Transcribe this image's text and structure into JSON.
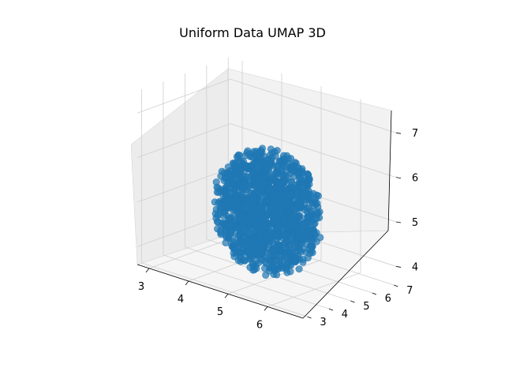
{
  "chart_data": {
    "type": "scatter",
    "projection": "3d",
    "title": "Uniform Data UMAP 3D",
    "xlabel": "",
    "ylabel": "",
    "zlabel": "",
    "x_ticks": [
      "3",
      "4",
      "5",
      "6"
    ],
    "y_ticks": [
      "3",
      "4",
      "5",
      "6",
      "7"
    ],
    "z_ticks": [
      "4",
      "5",
      "6",
      "7"
    ],
    "xlim": [
      2.7,
      6.9
    ],
    "ylim": [
      2.8,
      7.1
    ],
    "zlim": [
      3.6,
      7.5
    ],
    "grid": true,
    "point_color": "#1f77b4",
    "point_alpha": 0.7,
    "cluster": {
      "shape": "roughly spherical dense cloud of uniform points",
      "center": {
        "x": 4.8,
        "y": 5.0,
        "z": 5.0
      },
      "extent": {
        "x": [
          3.6,
          6.0
        ],
        "y": [
          3.7,
          6.3
        ],
        "z": [
          3.8,
          6.6
        ]
      }
    }
  }
}
